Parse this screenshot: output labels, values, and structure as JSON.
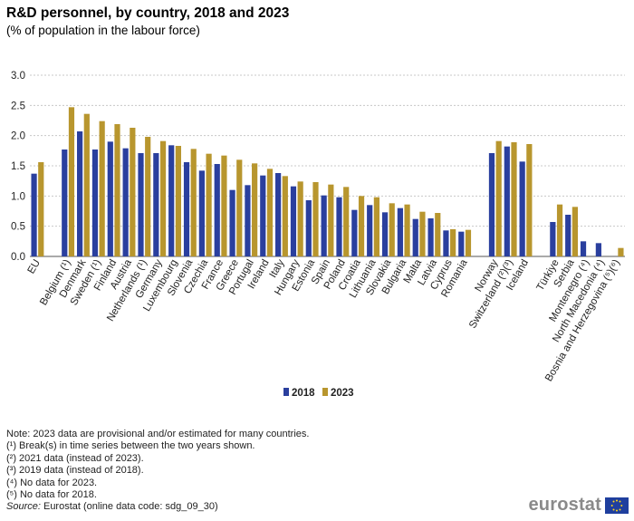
{
  "header": {
    "title": "R&D personnel, by country, 2018 and 2023",
    "subtitle": "(% of population in the labour force)"
  },
  "colors": {
    "series_2018": "#2a3f9e",
    "series_2023": "#b8962e",
    "grid": "#c8c8c8",
    "axis": "#555555"
  },
  "chart_data": {
    "type": "bar",
    "title": "R&D personnel, by country, 2018 and 2023",
    "subtitle": "(% of population in the labour force)",
    "ylim": [
      0,
      3
    ],
    "yticks": [
      "0.0",
      "0.5",
      "1.0",
      "1.5",
      "2.0",
      "2.5",
      "3.0"
    ],
    "grid": true,
    "legend_position": "bottom-center",
    "categories": [
      "EU",
      "",
      "Belgium (¹)",
      "Denmark",
      "Sweden (¹)",
      "Finland",
      "Austria",
      "Netherlands (¹)",
      "Germany",
      "Luxembourg",
      "Slovenia",
      "Czechia",
      "France",
      "Greece",
      "Portugal",
      "Ireland",
      "Italy",
      "Hungary",
      "Estonia",
      "Spain",
      "Poland",
      "Croatia",
      "Lithuania",
      "Slovakia",
      "Bulgaria",
      "Malta",
      "Latvia",
      "Cyprus",
      "Romania",
      "",
      "Norway",
      "Switzerland (²)(³)",
      "Iceland",
      "",
      "Türkiye",
      "Serbia",
      "Montenegro (⁴)",
      "North Macedonia (⁴)",
      "Bosnia and Herzegovina (⁵)(⁶)"
    ],
    "series": [
      {
        "name": "2018",
        "values": [
          1.37,
          null,
          1.77,
          2.07,
          1.77,
          1.9,
          1.79,
          1.71,
          1.71,
          1.84,
          1.56,
          1.42,
          1.53,
          1.1,
          1.18,
          1.34,
          1.38,
          1.16,
          0.93,
          1.01,
          0.98,
          0.77,
          0.85,
          0.73,
          0.8,
          0.62,
          0.63,
          0.43,
          0.41,
          null,
          1.71,
          1.82,
          1.57,
          null,
          0.57,
          0.69,
          0.25,
          0.22,
          null
        ]
      },
      {
        "name": "2023",
        "values": [
          1.56,
          null,
          2.47,
          2.36,
          2.24,
          2.19,
          2.13,
          1.98,
          1.91,
          1.83,
          1.78,
          1.7,
          1.67,
          1.6,
          1.54,
          1.45,
          1.33,
          1.24,
          1.23,
          1.19,
          1.15,
          1.0,
          0.98,
          0.88,
          0.86,
          0.74,
          0.72,
          0.45,
          0.44,
          null,
          1.91,
          1.89,
          1.86,
          null,
          0.86,
          0.82,
          null,
          null,
          0.14
        ]
      }
    ]
  },
  "notes": [
    "Note: 2023 data are provisional and/or estimated for many countries.",
    "(¹) Break(s) in time series between the two years shown.",
    "(²) 2021 data (instead of 2023).",
    "(³) 2019 data (instead of 2018).",
    "(⁴) No data for 2023.",
    "(⁵) No data for 2018."
  ],
  "source": {
    "label": "Source:",
    "text": " Eurostat (online data code: sdg_09_30)"
  },
  "logo": {
    "text": "eurostat",
    "icon": "eu-flag-icon"
  }
}
